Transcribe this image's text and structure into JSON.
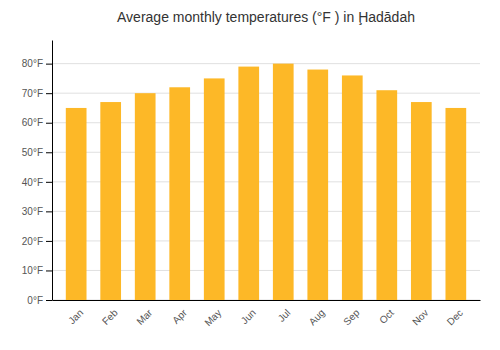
{
  "chart_data": {
    "type": "bar",
    "title": "Average monthly temperatures (°F ) in Ḩadādah",
    "categories": [
      "Jan",
      "Feb",
      "Mar",
      "Apr",
      "May",
      "Jun",
      "Jul",
      "Aug",
      "Sep",
      "Oct",
      "Nov",
      "Dec"
    ],
    "values": [
      65,
      67,
      70,
      72,
      75,
      79,
      80,
      78,
      76,
      71,
      67,
      65
    ],
    "color": "#FDB827",
    "ylim": [
      0,
      88
    ],
    "yticks": [
      {
        "value": 0,
        "label": "0°F"
      },
      {
        "value": 10,
        "label": "10°F"
      },
      {
        "value": 20,
        "label": "20°F"
      },
      {
        "value": 30,
        "label": "30°F"
      },
      {
        "value": 40,
        "label": "40°F"
      },
      {
        "value": 50,
        "label": "50°F"
      },
      {
        "value": 60,
        "label": "60°F"
      },
      {
        "value": 70,
        "label": "70°F"
      },
      {
        "value": 80,
        "label": "80°F"
      }
    ],
    "grid": true
  }
}
